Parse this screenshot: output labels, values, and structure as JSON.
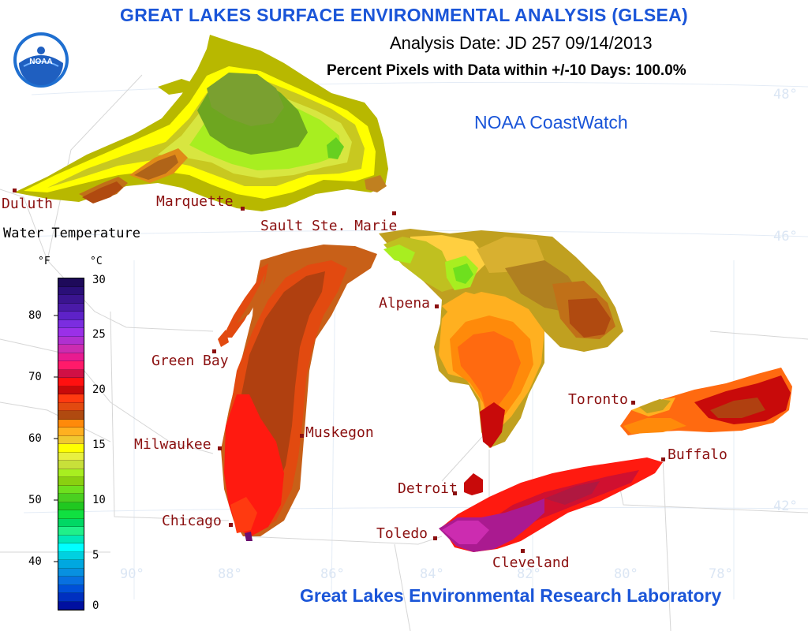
{
  "header": {
    "title": "GREAT LAKES SURFACE ENVIRONMENTAL ANALYSIS (GLSEA)",
    "analysis_date": "Analysis Date:  JD 257 09/14/2013",
    "percent_pixels": "Percent Pixels with Data within +/-10 Days: 100.0%",
    "logo_text": "NOAA"
  },
  "branding": {
    "coastwatch": "NOAA CoastWatch",
    "lab": "Great Lakes Environmental Research Laboratory"
  },
  "legend": {
    "title": "Water Temperature",
    "unit_f": "°F",
    "unit_c": "°C",
    "f_ticks": [
      "80",
      "70",
      "60",
      "50",
      "40"
    ],
    "c_ticks": [
      "30",
      "25",
      "20",
      "15",
      "10",
      "5",
      "0"
    ],
    "colors_top_to_bottom": [
      "#1e0a5a",
      "#2a0f78",
      "#3a148f",
      "#4a1aa8",
      "#5e22c8",
      "#7b2de0",
      "#9a30e8",
      "#b030d0",
      "#cc2cb0",
      "#e81b90",
      "#ff1a6a",
      "#d01045",
      "#ff1010",
      "#c80a0a",
      "#ff3a10",
      "#e24a10",
      "#b04a10",
      "#ff8a0a",
      "#ffb020",
      "#f0c830",
      "#ffff00",
      "#e8f040",
      "#c8e03a",
      "#a8ee20",
      "#8ad010",
      "#6ee01e",
      "#4ad020",
      "#20c820",
      "#10e040",
      "#00d864",
      "#20f08a",
      "#00e8b8",
      "#00ffff",
      "#00d0e0",
      "#00a8e0",
      "#0890e0",
      "#0870e0",
      "#0050d8",
      "#0030c0",
      "#0010a0"
    ]
  },
  "cities": [
    {
      "name": "Duluth"
    },
    {
      "name": "Marquette"
    },
    {
      "name": "Sault Ste. Marie"
    },
    {
      "name": "Alpena"
    },
    {
      "name": "Green Bay"
    },
    {
      "name": "Milwaukee"
    },
    {
      "name": "Muskegon"
    },
    {
      "name": "Chicago"
    },
    {
      "name": "Toronto"
    },
    {
      "name": "Buffalo"
    },
    {
      "name": "Detroit"
    },
    {
      "name": "Toledo"
    },
    {
      "name": "Cleveland"
    }
  ],
  "graticule": {
    "lat_labels": [
      "48°",
      "46°",
      "42°"
    ],
    "lon_labels": [
      "90°",
      "88°",
      "86°",
      "84°",
      "82°",
      "80°",
      "78°"
    ]
  },
  "colors": {
    "title_blue": "#1a55d8",
    "city_red": "#8b1010"
  }
}
